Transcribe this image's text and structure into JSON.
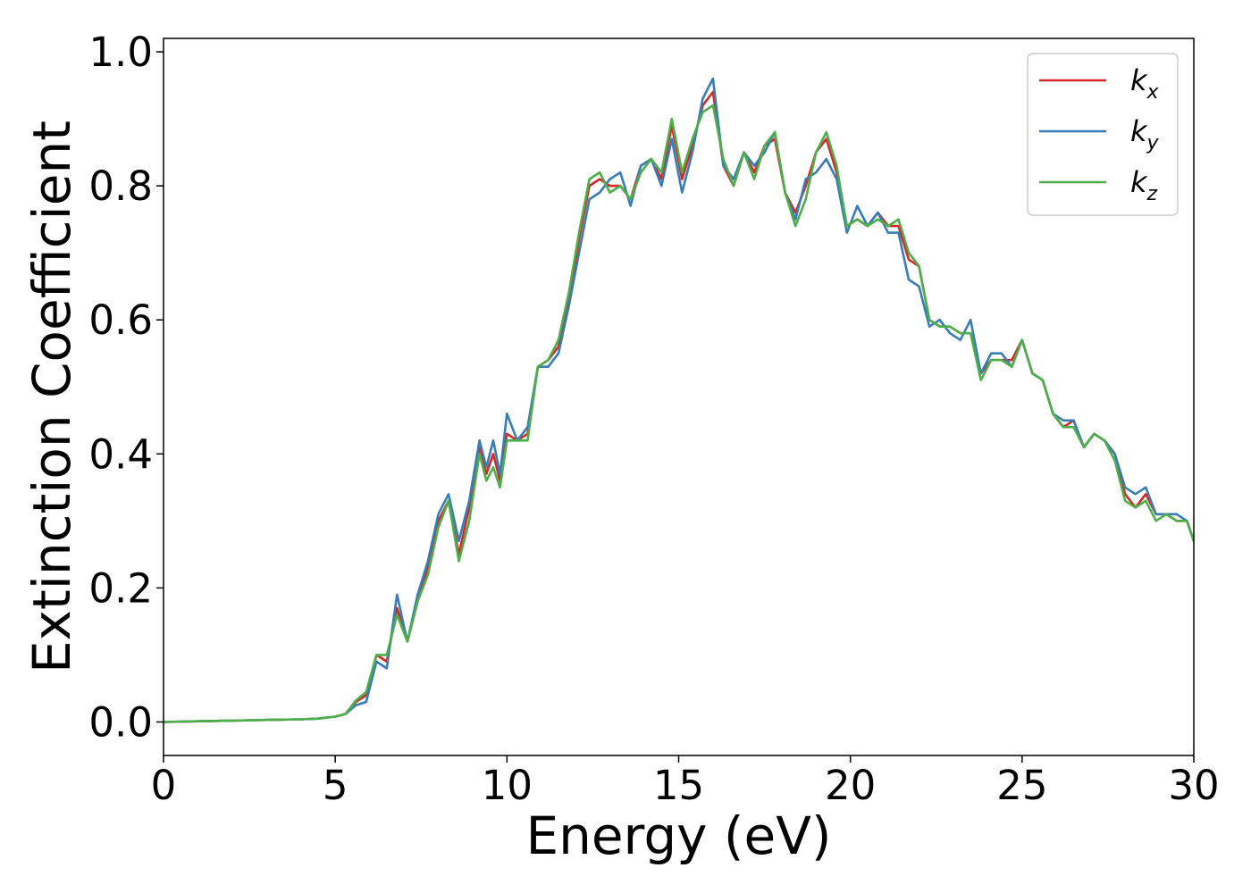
{
  "chart_data": {
    "type": "line",
    "xlabel": "Energy (eV)",
    "ylabel": "Extinction Coefficient",
    "xlim": [
      0,
      30
    ],
    "ylim": [
      -0.05,
      1.02
    ],
    "x_ticks": [
      "0",
      "5",
      "10",
      "15",
      "20",
      "25",
      "30"
    ],
    "y_ticks": [
      "0.0",
      "0.2",
      "0.4",
      "0.6",
      "0.8",
      "1.0"
    ],
    "grid": false,
    "legend_position": "top-right",
    "x": [
      0,
      1,
      2,
      3,
      4,
      4.5,
      5,
      5.3,
      5.6,
      5.9,
      6.2,
      6.5,
      6.8,
      7.1,
      7.4,
      7.7,
      8.0,
      8.3,
      8.6,
      8.9,
      9.2,
      9.4,
      9.6,
      9.8,
      10.0,
      10.3,
      10.6,
      10.9,
      11.2,
      11.5,
      11.8,
      12.1,
      12.4,
      12.7,
      13.0,
      13.3,
      13.6,
      13.9,
      14.2,
      14.5,
      14.8,
      15.1,
      15.4,
      15.7,
      16.0,
      16.3,
      16.6,
      16.9,
      17.2,
      17.5,
      17.8,
      18.1,
      18.4,
      18.7,
      19.0,
      19.3,
      19.6,
      19.9,
      20.2,
      20.5,
      20.8,
      21.1,
      21.4,
      21.7,
      22.0,
      22.3,
      22.6,
      22.9,
      23.2,
      23.5,
      23.8,
      24.1,
      24.4,
      24.7,
      25.0,
      25.3,
      25.6,
      25.9,
      26.2,
      26.5,
      26.8,
      27.1,
      27.4,
      27.7,
      28.0,
      28.3,
      28.6,
      28.9,
      29.2,
      29.5,
      29.8,
      30.0
    ],
    "series": [
      {
        "name": "k",
        "subscript": "x",
        "color": "#d62728",
        "values": [
          0,
          0.001,
          0.002,
          0.003,
          0.004,
          0.005,
          0.008,
          0.012,
          0.03,
          0.04,
          0.1,
          0.09,
          0.17,
          0.12,
          0.18,
          0.23,
          0.3,
          0.33,
          0.25,
          0.32,
          0.41,
          0.37,
          0.4,
          0.36,
          0.43,
          0.42,
          0.43,
          0.53,
          0.54,
          0.56,
          0.63,
          0.72,
          0.8,
          0.81,
          0.8,
          0.8,
          0.78,
          0.83,
          0.84,
          0.81,
          0.89,
          0.81,
          0.86,
          0.92,
          0.94,
          0.83,
          0.8,
          0.85,
          0.82,
          0.86,
          0.87,
          0.79,
          0.76,
          0.8,
          0.85,
          0.87,
          0.82,
          0.74,
          0.75,
          0.74,
          0.76,
          0.74,
          0.74,
          0.69,
          0.68,
          0.6,
          0.59,
          0.59,
          0.58,
          0.58,
          0.52,
          0.54,
          0.54,
          0.54,
          0.57,
          0.52,
          0.51,
          0.46,
          0.44,
          0.45,
          0.41,
          0.43,
          0.42,
          0.4,
          0.34,
          0.32,
          0.34,
          0.31,
          0.31,
          0.3,
          0.3,
          0.27
        ]
      },
      {
        "name": "k",
        "subscript": "y",
        "color": "#377eb8",
        "values": [
          0,
          0.001,
          0.002,
          0.003,
          0.004,
          0.005,
          0.008,
          0.012,
          0.025,
          0.03,
          0.09,
          0.08,
          0.19,
          0.12,
          0.19,
          0.24,
          0.31,
          0.34,
          0.27,
          0.33,
          0.42,
          0.38,
          0.42,
          0.37,
          0.46,
          0.42,
          0.44,
          0.53,
          0.53,
          0.55,
          0.62,
          0.7,
          0.78,
          0.79,
          0.81,
          0.82,
          0.77,
          0.83,
          0.84,
          0.8,
          0.87,
          0.79,
          0.85,
          0.93,
          0.96,
          0.83,
          0.81,
          0.85,
          0.83,
          0.85,
          0.88,
          0.79,
          0.75,
          0.81,
          0.82,
          0.84,
          0.81,
          0.73,
          0.77,
          0.74,
          0.76,
          0.73,
          0.73,
          0.66,
          0.65,
          0.59,
          0.6,
          0.58,
          0.57,
          0.6,
          0.52,
          0.55,
          0.55,
          0.53,
          0.57,
          0.52,
          0.51,
          0.46,
          0.45,
          0.45,
          0.41,
          0.43,
          0.42,
          0.4,
          0.35,
          0.34,
          0.35,
          0.31,
          0.31,
          0.31,
          0.3,
          0.27
        ]
      },
      {
        "name": "k",
        "subscript": "z",
        "color": "#4daf4a",
        "values": [
          0,
          0.001,
          0.002,
          0.003,
          0.004,
          0.005,
          0.008,
          0.012,
          0.032,
          0.045,
          0.1,
          0.1,
          0.16,
          0.12,
          0.18,
          0.22,
          0.29,
          0.33,
          0.24,
          0.3,
          0.4,
          0.36,
          0.38,
          0.35,
          0.42,
          0.42,
          0.42,
          0.53,
          0.54,
          0.57,
          0.64,
          0.73,
          0.81,
          0.82,
          0.79,
          0.8,
          0.78,
          0.82,
          0.84,
          0.82,
          0.9,
          0.82,
          0.87,
          0.91,
          0.92,
          0.84,
          0.8,
          0.85,
          0.81,
          0.86,
          0.88,
          0.79,
          0.74,
          0.78,
          0.85,
          0.88,
          0.83,
          0.74,
          0.75,
          0.74,
          0.75,
          0.74,
          0.75,
          0.7,
          0.68,
          0.6,
          0.59,
          0.59,
          0.58,
          0.58,
          0.51,
          0.54,
          0.54,
          0.53,
          0.57,
          0.52,
          0.51,
          0.46,
          0.44,
          0.44,
          0.41,
          0.43,
          0.42,
          0.39,
          0.33,
          0.32,
          0.33,
          0.3,
          0.31,
          0.3,
          0.3,
          0.27
        ]
      }
    ]
  }
}
